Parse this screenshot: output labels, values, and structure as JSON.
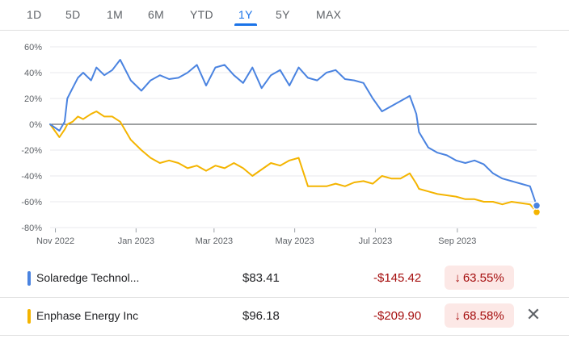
{
  "tabs": [
    {
      "label": "1D"
    },
    {
      "label": "5D"
    },
    {
      "label": "1M"
    },
    {
      "label": "6M"
    },
    {
      "label": "YTD"
    },
    {
      "label": "1Y",
      "active": true
    },
    {
      "label": "5Y"
    },
    {
      "label": "MAX"
    }
  ],
  "chart_data": {
    "type": "line",
    "x_axis": {
      "ticks": [
        "Nov 2022",
        "Jan 2023",
        "Mar 2023",
        "May 2023",
        "Jul 2023",
        "Sep 2023"
      ]
    },
    "y_axis": {
      "ticks": [
        "60%",
        "40%",
        "20%",
        "0%",
        "-20%",
        "-40%",
        "-60%",
        "-80%"
      ],
      "ylim": [
        -80,
        60
      ]
    },
    "baseline": 0,
    "series": [
      {
        "name": "Solaredge Technol...",
        "color": "#4a83e0",
        "x": [
          "2022-10-28",
          "2022-11-04",
          "2022-11-08",
          "2022-11-10",
          "2022-11-14",
          "2022-11-18",
          "2022-11-22",
          "2022-11-28",
          "2022-12-02",
          "2022-12-08",
          "2022-12-14",
          "2022-12-20",
          "2022-12-28",
          "2023-01-05",
          "2023-01-12",
          "2023-01-19",
          "2023-01-26",
          "2023-02-02",
          "2023-02-09",
          "2023-02-16",
          "2023-02-23",
          "2023-03-02",
          "2023-03-09",
          "2023-03-16",
          "2023-03-23",
          "2023-03-30",
          "2023-04-06",
          "2023-04-13",
          "2023-04-20",
          "2023-04-27",
          "2023-05-04",
          "2023-05-11",
          "2023-05-18",
          "2023-05-25",
          "2023-06-01",
          "2023-06-08",
          "2023-06-15",
          "2023-06-22",
          "2023-06-29",
          "2023-07-06",
          "2023-07-13",
          "2023-07-20",
          "2023-07-27",
          "2023-08-01",
          "2023-08-03",
          "2023-08-10",
          "2023-08-17",
          "2023-08-24",
          "2023-08-31",
          "2023-09-07",
          "2023-09-14",
          "2023-09-21",
          "2023-09-28",
          "2023-10-05",
          "2023-10-12",
          "2023-10-19",
          "2023-10-26",
          "2023-10-31"
        ],
        "values": [
          0,
          -5,
          2,
          20,
          28,
          36,
          40,
          34,
          44,
          38,
          42,
          50,
          34,
          26,
          34,
          38,
          35,
          36,
          40,
          46,
          30,
          44,
          46,
          38,
          32,
          44,
          28,
          38,
          42,
          30,
          44,
          36,
          34,
          40,
          42,
          35,
          34,
          32,
          20,
          10,
          14,
          18,
          22,
          8,
          -6,
          -18,
          -22,
          -24,
          -28,
          -30,
          -28,
          -31,
          -38,
          -42,
          -44,
          -46,
          -48,
          -63
        ]
      },
      {
        "name": "Enphase Energy Inc",
        "color": "#f4b400",
        "x": [
          "2022-10-28",
          "2022-11-04",
          "2022-11-08",
          "2022-11-10",
          "2022-11-14",
          "2022-11-18",
          "2022-11-22",
          "2022-11-28",
          "2022-12-02",
          "2022-12-08",
          "2022-12-14",
          "2022-12-20",
          "2022-12-28",
          "2023-01-05",
          "2023-01-12",
          "2023-01-19",
          "2023-01-26",
          "2023-02-02",
          "2023-02-09",
          "2023-02-16",
          "2023-02-23",
          "2023-03-02",
          "2023-03-09",
          "2023-03-16",
          "2023-03-23",
          "2023-03-30",
          "2023-04-06",
          "2023-04-13",
          "2023-04-20",
          "2023-04-27",
          "2023-05-04",
          "2023-05-11",
          "2023-05-18",
          "2023-05-25",
          "2023-06-01",
          "2023-06-08",
          "2023-06-15",
          "2023-06-22",
          "2023-06-29",
          "2023-07-06",
          "2023-07-13",
          "2023-07-20",
          "2023-07-27",
          "2023-08-01",
          "2023-08-03",
          "2023-08-10",
          "2023-08-17",
          "2023-08-24",
          "2023-08-31",
          "2023-09-07",
          "2023-09-14",
          "2023-09-21",
          "2023-09-28",
          "2023-10-05",
          "2023-10-12",
          "2023-10-19",
          "2023-10-26",
          "2023-10-31"
        ],
        "values": [
          0,
          -10,
          -4,
          0,
          2,
          6,
          4,
          8,
          10,
          6,
          6,
          2,
          -12,
          -20,
          -26,
          -30,
          -28,
          -30,
          -34,
          -32,
          -36,
          -32,
          -34,
          -30,
          -34,
          -40,
          -35,
          -30,
          -32,
          -28,
          -26,
          -48,
          -48,
          -48,
          -46,
          -48,
          -45,
          -44,
          -46,
          -40,
          -42,
          -42,
          -38,
          -46,
          -50,
          -52,
          -54,
          -55,
          -56,
          -58,
          -58,
          -60,
          -60,
          -62,
          -60,
          -61,
          -62,
          -68
        ]
      }
    ]
  },
  "legend": [
    {
      "name": "Solaredge Technol...",
      "color": "#4a83e0",
      "price": "$83.41",
      "change": "-$145.42",
      "arrow": "↓",
      "pct": "63.55%",
      "close": ""
    },
    {
      "name": "Enphase Energy Inc",
      "color": "#f4b400",
      "price": "$96.18",
      "change": "-$209.90",
      "arrow": "↓",
      "pct": "68.58%",
      "close": "✕"
    }
  ]
}
